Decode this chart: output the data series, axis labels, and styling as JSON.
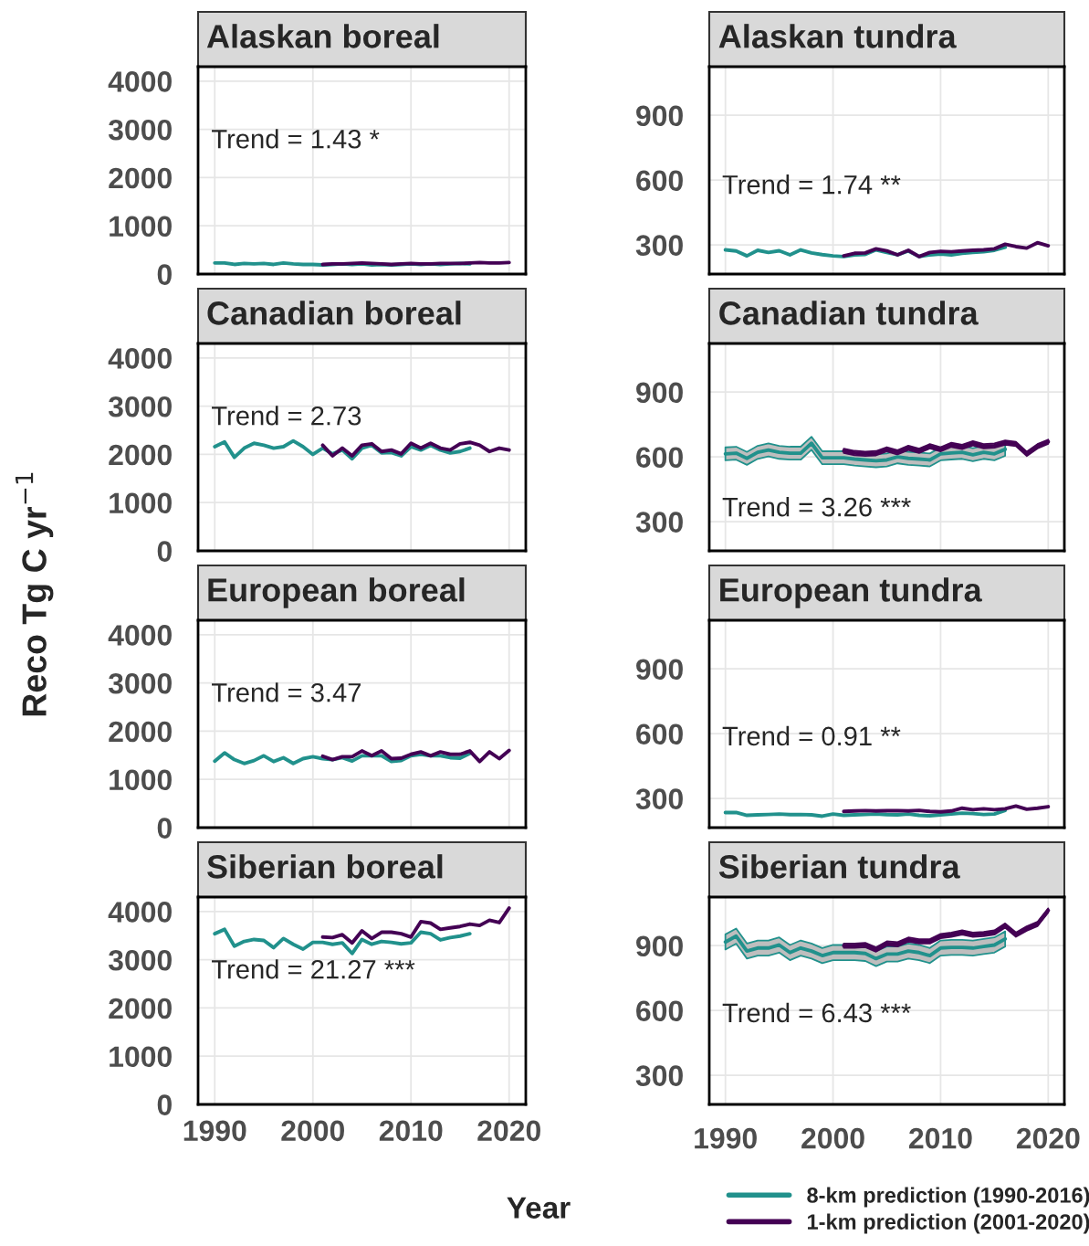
{
  "chart_data": [
    {
      "type": "line",
      "title": "Alaskan boreal",
      "ylabel": "Reco Tg C yr$^{−1}$",
      "annotations": [
        "Trend = 1.43 *"
      ],
      "xlim": [
        1988.3,
        2021.7
      ],
      "ylim": [
        0,
        4300
      ],
      "xticks": [
        1990,
        2000,
        2010,
        2020
      ],
      "yticks": [
        0,
        1000,
        2000,
        3000,
        4000
      ],
      "grid": true,
      "tick_labels": "y",
      "series": [
        {
          "color": "#21918c",
          "x": [
            1990,
            1991,
            1992,
            1993,
            1994,
            1995,
            1996,
            1997,
            1998,
            1999,
            2000,
            2001,
            2002,
            2003,
            2004,
            2005,
            2006,
            2007,
            2008,
            2009,
            2010,
            2011,
            2012,
            2013,
            2014,
            2015,
            2016
          ],
          "values": [
            230,
            230,
            200,
            220,
            210,
            220,
            200,
            230,
            210,
            200,
            200,
            190,
            200,
            210,
            200,
            210,
            190,
            200,
            190,
            200,
            210,
            200,
            210,
            200,
            210,
            220,
            210
          ]
        },
        {
          "color": "#440154",
          "x": [
            2001,
            2002,
            2003,
            2004,
            2005,
            2006,
            2007,
            2008,
            2009,
            2010,
            2011,
            2012,
            2013,
            2014,
            2015,
            2016,
            2017,
            2018,
            2019,
            2020
          ],
          "values": [
            200,
            210,
            210,
            220,
            230,
            220,
            210,
            200,
            210,
            220,
            210,
            210,
            220,
            220,
            220,
            230,
            240,
            230,
            230,
            240
          ]
        }
      ]
    },
    {
      "type": "line",
      "title": "Alaskan tundra",
      "annotations": [
        "Trend = 1.74 **"
      ],
      "xlim": [
        1988.5,
        2021.5
      ],
      "ylim": [
        165,
        1125
      ],
      "xticks": [
        1990,
        2000,
        2010,
        2020
      ],
      "yticks": [
        300,
        600,
        900
      ],
      "grid": true,
      "tick_labels": "y",
      "series": [
        {
          "color": "#21918c",
          "x": [
            1990,
            1991,
            1992,
            1993,
            1994,
            1995,
            1996,
            1997,
            1998,
            1999,
            2000,
            2001,
            2002,
            2003,
            2004,
            2005,
            2006,
            2007,
            2008,
            2009,
            2010,
            2011,
            2012,
            2013,
            2014,
            2015,
            2016
          ],
          "values": [
            277,
            272,
            249,
            275,
            265,
            273,
            254,
            277,
            263,
            255,
            249,
            246,
            254,
            256,
            277,
            265,
            254,
            272,
            246,
            254,
            258,
            254,
            261,
            265,
            268,
            275,
            289
          ]
        },
        {
          "color": "#440154",
          "x": [
            2001,
            2002,
            2003,
            2004,
            2005,
            2006,
            2007,
            2008,
            2009,
            2010,
            2011,
            2012,
            2013,
            2014,
            2015,
            2016,
            2017,
            2018,
            2019,
            2020
          ],
          "values": [
            249,
            261,
            263,
            282,
            272,
            254,
            275,
            246,
            265,
            270,
            268,
            272,
            275,
            277,
            282,
            303,
            292,
            285,
            310,
            296
          ]
        }
      ]
    },
    {
      "type": "line",
      "title": "Canadian boreal",
      "annotations": [
        "Trend = 2.73"
      ],
      "xlim": [
        1988.3,
        2021.7
      ],
      "ylim": [
        0,
        4300
      ],
      "xticks": [
        1990,
        2000,
        2010,
        2020
      ],
      "yticks": [
        0,
        1000,
        2000,
        3000,
        4000
      ],
      "grid": true,
      "tick_labels": "y",
      "series": [
        {
          "color": "#21918c",
          "x": [
            1990,
            1991,
            1992,
            1993,
            1994,
            1995,
            1996,
            1997,
            1998,
            1999,
            2000,
            2001,
            2002,
            2003,
            2004,
            2005,
            2006,
            2007,
            2008,
            2009,
            2010,
            2011,
            2012,
            2013,
            2014,
            2015,
            2016
          ],
          "values": [
            2160,
            2260,
            1940,
            2130,
            2230,
            2190,
            2130,
            2160,
            2280,
            2160,
            2000,
            2130,
            2010,
            2090,
            1910,
            2130,
            2190,
            2030,
            2040,
            1970,
            2160,
            2090,
            2190,
            2090,
            2030,
            2060,
            2130
          ]
        },
        {
          "color": "#440154",
          "x": [
            2001,
            2002,
            2003,
            2004,
            2005,
            2006,
            2007,
            2008,
            2009,
            2010,
            2011,
            2012,
            2013,
            2014,
            2015,
            2016,
            2017,
            2018,
            2019,
            2020
          ],
          "values": [
            2190,
            1970,
            2130,
            1970,
            2190,
            2220,
            2060,
            2090,
            2010,
            2230,
            2130,
            2230,
            2130,
            2090,
            2220,
            2250,
            2190,
            2060,
            2130,
            2090
          ]
        }
      ]
    },
    {
      "type": "line",
      "title": "Canadian tundra",
      "annotations": [
        "Trend = 3.26 ***"
      ],
      "xlim": [
        1988.5,
        2021.5
      ],
      "ylim": [
        165,
        1125
      ],
      "xticks": [
        1990,
        2000,
        2010,
        2020
      ],
      "yticks": [
        300,
        600,
        900
      ],
      "grid": true,
      "tick_labels": "y",
      "series": [
        {
          "color": "#21918c",
          "x": [
            1990,
            1991,
            1992,
            1993,
            1994,
            1995,
            1996,
            1997,
            1998,
            1999,
            2000,
            2001,
            2002,
            2003,
            2004,
            2005,
            2006,
            2007,
            2008,
            2009,
            2010,
            2011,
            2012,
            2013,
            2014,
            2015,
            2016
          ],
          "values": [
            614,
            617,
            593,
            621,
            632,
            621,
            617,
            617,
            663,
            596,
            596,
            596,
            590,
            586,
            582,
            586,
            600,
            593,
            590,
            586,
            614,
            618,
            621,
            610,
            621,
            614,
            635
          ],
          "lower": [
            584,
            587,
            563,
            591,
            602,
            591,
            587,
            587,
            633,
            566,
            566,
            566,
            560,
            556,
            552,
            556,
            570,
            563,
            560,
            556,
            584,
            588,
            591,
            580,
            591,
            584,
            605
          ],
          "upper": [
            644,
            647,
            623,
            651,
            662,
            651,
            647,
            647,
            693,
            626,
            626,
            626,
            620,
            616,
            612,
            616,
            630,
            623,
            620,
            616,
            644,
            648,
            651,
            640,
            651,
            644,
            665
          ]
        },
        {
          "color": "#440154",
          "x": [
            2001,
            2002,
            2003,
            2004,
            2005,
            2006,
            2007,
            2008,
            2009,
            2010,
            2011,
            2012,
            2013,
            2014,
            2015,
            2016,
            2017,
            2018,
            2019,
            2020
          ],
          "values": [
            628,
            618,
            614,
            617,
            635,
            621,
            642,
            628,
            649,
            635,
            656,
            646,
            663,
            649,
            652,
            666,
            660,
            614,
            649,
            670
          ],
          "lower": [
            618,
            608,
            604,
            607,
            625,
            611,
            632,
            618,
            639,
            625,
            646,
            636,
            653,
            639,
            642,
            656,
            650,
            604,
            639,
            660
          ],
          "upper": [
            638,
            628,
            624,
            627,
            645,
            631,
            652,
            638,
            659,
            645,
            666,
            656,
            673,
            659,
            662,
            676,
            670,
            624,
            659,
            680
          ]
        }
      ]
    },
    {
      "type": "line",
      "title": "European boreal",
      "annotations": [
        "Trend = 3.47"
      ],
      "xlim": [
        1988.3,
        2021.7
      ],
      "ylim": [
        0,
        4300
      ],
      "xticks": [
        1990,
        2000,
        2010,
        2020
      ],
      "yticks": [
        0,
        1000,
        2000,
        3000,
        4000
      ],
      "grid": true,
      "tick_labels": "y",
      "series": [
        {
          "color": "#21918c",
          "x": [
            1990,
            1991,
            1992,
            1993,
            1994,
            1995,
            1996,
            1997,
            1998,
            1999,
            2000,
            2001,
            2002,
            2003,
            2004,
            2005,
            2006,
            2007,
            2008,
            2009,
            2010,
            2011,
            2012,
            2013,
            2014,
            2015,
            2016
          ],
          "values": [
            1380,
            1550,
            1410,
            1330,
            1390,
            1490,
            1370,
            1450,
            1330,
            1430,
            1470,
            1430,
            1410,
            1450,
            1380,
            1490,
            1490,
            1490,
            1370,
            1390,
            1490,
            1520,
            1490,
            1490,
            1450,
            1440,
            1540
          ]
        },
        {
          "color": "#440154",
          "x": [
            2001,
            2002,
            2003,
            2004,
            2005,
            2006,
            2007,
            2008,
            2009,
            2010,
            2011,
            2012,
            2013,
            2014,
            2015,
            2016,
            2017,
            2018,
            2019,
            2020
          ],
          "values": [
            1480,
            1410,
            1470,
            1470,
            1590,
            1490,
            1590,
            1430,
            1440,
            1520,
            1570,
            1490,
            1570,
            1520,
            1520,
            1590,
            1370,
            1570,
            1430,
            1600
          ]
        }
      ]
    },
    {
      "type": "line",
      "title": "European tundra",
      "annotations": [
        "Trend = 0.91 **"
      ],
      "xlim": [
        1988.5,
        2021.5
      ],
      "ylim": [
        165,
        1125
      ],
      "xticks": [
        1990,
        2000,
        2010,
        2020
      ],
      "yticks": [
        300,
        600,
        900
      ],
      "grid": true,
      "tick_labels": "y",
      "series": [
        {
          "color": "#21918c",
          "x": [
            1990,
            1991,
            1992,
            1993,
            1994,
            1995,
            1996,
            1997,
            1998,
            1999,
            2000,
            2001,
            2002,
            2003,
            2004,
            2005,
            2006,
            2007,
            2008,
            2009,
            2010,
            2011,
            2012,
            2013,
            2014,
            2015,
            2016
          ],
          "values": [
            235,
            235,
            222,
            224,
            226,
            228,
            225,
            226,
            224,
            218,
            228,
            222,
            224,
            226,
            228,
            225,
            224,
            228,
            222,
            220,
            224,
            228,
            232,
            230,
            226,
            228,
            245
          ]
        },
        {
          "color": "#440154",
          "x": [
            2001,
            2002,
            2003,
            2004,
            2005,
            2006,
            2007,
            2008,
            2009,
            2010,
            2011,
            2012,
            2013,
            2014,
            2015,
            2016,
            2017,
            2018,
            2019,
            2020
          ],
          "values": [
            240,
            242,
            244,
            242,
            243,
            244,
            242,
            245,
            240,
            238,
            242,
            255,
            248,
            252,
            248,
            252,
            265,
            250,
            255,
            262
          ]
        }
      ]
    },
    {
      "type": "line",
      "title": "Siberian boreal",
      "annotations": [
        "Trend = 21.27 ***"
      ],
      "xlim": [
        1988.3,
        2021.7
      ],
      "ylim": [
        0,
        4300
      ],
      "xticks": [
        1990,
        2000,
        2010,
        2020
      ],
      "yticks": [
        0,
        1000,
        2000,
        3000,
        4000
      ],
      "grid": true,
      "series": [
        {
          "color": "#21918c",
          "x": [
            1990,
            1991,
            1992,
            1993,
            1994,
            1995,
            1996,
            1997,
            1998,
            1999,
            2000,
            2001,
            2002,
            2003,
            2004,
            2005,
            2006,
            2007,
            2008,
            2009,
            2010,
            2011,
            2012,
            2013,
            2014,
            2015,
            2016
          ],
          "values": [
            3540,
            3630,
            3280,
            3380,
            3420,
            3400,
            3250,
            3440,
            3320,
            3220,
            3360,
            3360,
            3320,
            3350,
            3130,
            3420,
            3320,
            3380,
            3360,
            3330,
            3350,
            3570,
            3540,
            3410,
            3460,
            3490,
            3540
          ]
        },
        {
          "color": "#440154",
          "x": [
            2001,
            2002,
            2003,
            2004,
            2005,
            2006,
            2007,
            2008,
            2009,
            2010,
            2011,
            2012,
            2013,
            2014,
            2015,
            2016,
            2017,
            2018,
            2019,
            2020
          ],
          "values": [
            3470,
            3460,
            3520,
            3350,
            3600,
            3440,
            3570,
            3570,
            3540,
            3470,
            3790,
            3760,
            3630,
            3660,
            3690,
            3740,
            3710,
            3820,
            3770,
            4070
          ]
        }
      ]
    },
    {
      "type": "line",
      "title": "Siberian tundra",
      "annotations": [
        "Trend = 6.43 ***"
      ],
      "xlabel": "Year",
      "legend": "bottom",
      "xlim": [
        1988.5,
        2021.5
      ],
      "ylim": [
        165,
        1125
      ],
      "xticks": [
        1990,
        2000,
        2010,
        2020
      ],
      "yticks": [
        300,
        600,
        900
      ],
      "grid": true,
      "series": [
        {
          "name": "8-km prediction (1990-2016)",
          "color": "#21918c",
          "x": [
            1990,
            1991,
            1992,
            1993,
            1994,
            1995,
            1996,
            1997,
            1998,
            1999,
            2000,
            2001,
            2002,
            2003,
            2004,
            2005,
            2006,
            2007,
            2008,
            2009,
            2010,
            2011,
            2012,
            2013,
            2014,
            2015,
            2016
          ],
          "values": [
            917,
            944,
            875,
            889,
            889,
            903,
            868,
            889,
            875,
            854,
            868,
            868,
            868,
            864,
            840,
            861,
            861,
            875,
            868,
            854,
            889,
            892,
            892,
            889,
            896,
            903,
            931
          ],
          "lower": [
            882,
            909,
            840,
            854,
            854,
            868,
            833,
            854,
            840,
            819,
            833,
            833,
            833,
            829,
            805,
            826,
            826,
            840,
            833,
            819,
            854,
            857,
            857,
            854,
            861,
            868,
            896
          ],
          "upper": [
            952,
            979,
            910,
            924,
            924,
            938,
            903,
            924,
            910,
            889,
            903,
            903,
            903,
            899,
            875,
            896,
            896,
            910,
            903,
            889,
            924,
            927,
            927,
            924,
            931,
            938,
            966
          ]
        },
        {
          "name": "1-km prediction (2001-2020)",
          "color": "#440154",
          "x": [
            2001,
            2002,
            2003,
            2004,
            2005,
            2006,
            2007,
            2008,
            2009,
            2010,
            2011,
            2012,
            2013,
            2014,
            2015,
            2016,
            2017,
            2018,
            2019,
            2020
          ],
          "values": [
            900,
            900,
            903,
            882,
            910,
            906,
            928,
            920,
            920,
            944,
            951,
            961,
            951,
            954,
            961,
            993,
            951,
            979,
            1000,
            1063
          ],
          "lower": [
            890,
            890,
            893,
            872,
            900,
            896,
            918,
            910,
            910,
            934,
            941,
            951,
            941,
            944,
            951,
            983,
            941,
            969,
            990,
            1053
          ],
          "upper": [
            910,
            910,
            913,
            892,
            920,
            916,
            938,
            930,
            930,
            954,
            961,
            971,
            961,
            964,
            971,
            1003,
            961,
            989,
            1010,
            1073
          ]
        }
      ]
    }
  ]
}
